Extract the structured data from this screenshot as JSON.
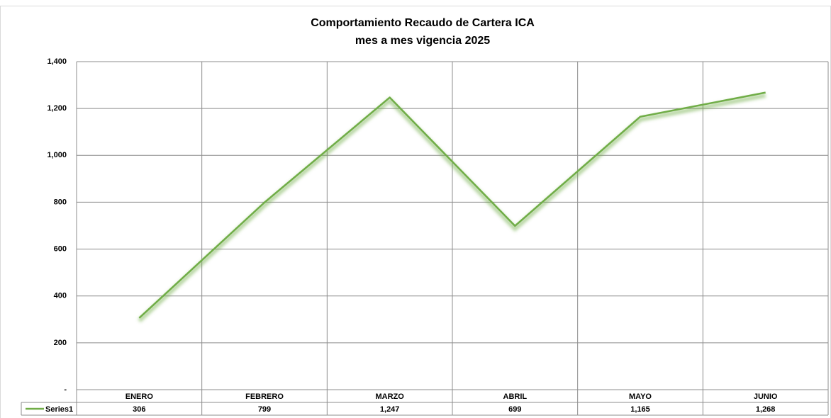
{
  "chart_data": {
    "type": "line",
    "title": "Comportamiento Recaudo de Cartera ICA",
    "subtitle": "mes a mes vigencia 2025",
    "categories": [
      "ENERO",
      "FEBRERO",
      "MARZO",
      "ABRIL",
      "MAYO",
      "JUNIO"
    ],
    "series": [
      {
        "name": "Series1",
        "color": "#70ad47",
        "values": [
          306,
          799,
          1247,
          699,
          1165,
          1268
        ],
        "value_labels": [
          "306",
          "799",
          "1,247",
          "699",
          "1,165",
          "1,268"
        ]
      }
    ],
    "ylim": [
      0,
      1400
    ],
    "yticks": [
      {
        "value": 0,
        "label": "-"
      },
      200,
      400,
      600,
      800,
      {
        "value": 1000,
        "label": "1,000"
      },
      {
        "value": 1200,
        "label": "1,200"
      },
      {
        "value": 1400,
        "label": "1,400"
      }
    ],
    "grid": true
  }
}
